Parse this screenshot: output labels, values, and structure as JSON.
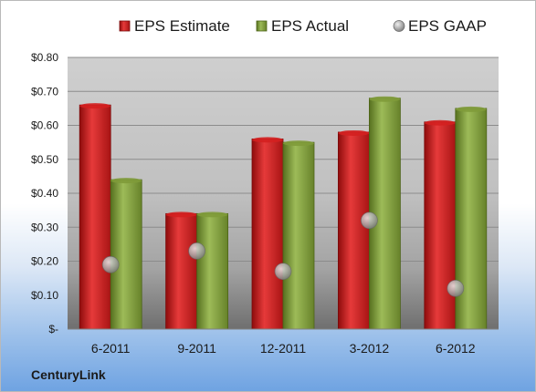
{
  "company": "CenturyLink",
  "chart_data": {
    "type": "bar",
    "categories": [
      "6-2011",
      "9-2011",
      "12-2011",
      "3-2012",
      "6-2012"
    ],
    "series": [
      {
        "name": "EPS Estimate",
        "kind": "bar",
        "color": "#d42020",
        "values": [
          0.66,
          0.34,
          0.56,
          0.58,
          0.61
        ]
      },
      {
        "name": "EPS Actual",
        "kind": "bar",
        "color": "#7f9b3a",
        "values": [
          0.44,
          0.34,
          0.55,
          0.68,
          0.65
        ]
      },
      {
        "name": "EPS GAAP",
        "kind": "marker",
        "color": "#a8a8a8",
        "values": [
          0.19,
          0.23,
          0.17,
          0.32,
          0.12
        ]
      }
    ],
    "yticks": [
      {
        "value": 0.8,
        "label": "$0.80"
      },
      {
        "value": 0.7,
        "label": "$0.70"
      },
      {
        "value": 0.6,
        "label": "$0.60"
      },
      {
        "value": 0.5,
        "label": "$0.50"
      },
      {
        "value": 0.4,
        "label": "$0.40"
      },
      {
        "value": 0.3,
        "label": "$0.30"
      },
      {
        "value": 0.2,
        "label": "$0.20"
      },
      {
        "value": 0.1,
        "label": "$0.10"
      },
      {
        "value": 0.0,
        "label": "$-"
      }
    ],
    "ylim": [
      0,
      0.8
    ],
    "grid": true,
    "legend_position": "top"
  }
}
